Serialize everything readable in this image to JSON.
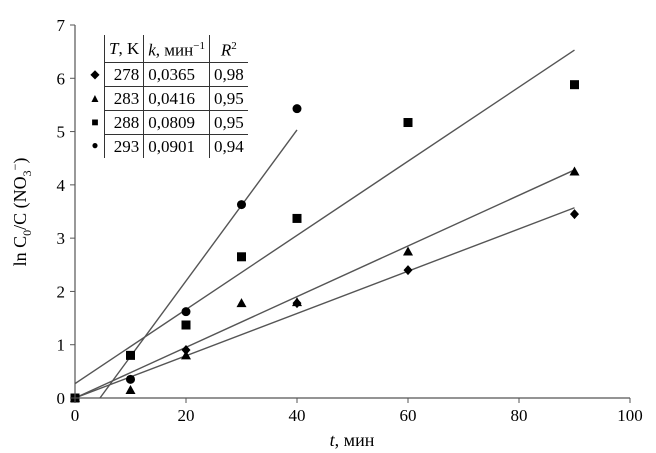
{
  "chart_data": {
    "type": "scatter",
    "xlabel": {
      "italic": "t",
      "rest": ", мин"
    },
    "ylabel": {
      "a": "ln C",
      "sub0": "0",
      "b": "/C (NO",
      "sub3": "3",
      "sup": "−",
      "c": ")"
    },
    "xlim": [
      0,
      100
    ],
    "ylim": [
      0,
      7
    ],
    "xticks": [
      "0",
      "20",
      "40",
      "60",
      "80",
      "100"
    ],
    "yticks": [
      "0",
      "1",
      "2",
      "3",
      "4",
      "5",
      "6",
      "7"
    ],
    "grid": false,
    "series": [
      {
        "name": "278",
        "marker": "diamond",
        "points": [
          [
            0,
            0
          ],
          [
            20,
            0.9
          ],
          [
            40,
            1.78
          ],
          [
            60,
            2.4
          ],
          [
            90,
            3.45
          ]
        ],
        "fit": [
          [
            0,
            0
          ],
          [
            90,
            3.57
          ]
        ]
      },
      {
        "name": "283",
        "marker": "triangle",
        "points": [
          [
            0,
            0
          ],
          [
            10,
            0.15
          ],
          [
            20,
            0.8
          ],
          [
            30,
            1.78
          ],
          [
            40,
            1.8
          ],
          [
            60,
            2.75
          ],
          [
            90,
            4.25
          ]
        ],
        "fit": [
          [
            0,
            0
          ],
          [
            90,
            4.28
          ]
        ]
      },
      {
        "name": "288",
        "marker": "square",
        "points": [
          [
            0,
            0
          ],
          [
            10,
            0.8
          ],
          [
            20,
            1.37
          ],
          [
            30,
            2.65
          ],
          [
            40,
            3.37
          ],
          [
            60,
            5.17
          ],
          [
            90,
            5.88
          ]
        ],
        "fit": [
          [
            0,
            0.27
          ],
          [
            90,
            6.53
          ]
        ]
      },
      {
        "name": "293",
        "marker": "circle",
        "points": [
          [
            0,
            0
          ],
          [
            10,
            0.35
          ],
          [
            20,
            1.62
          ],
          [
            30,
            3.63
          ],
          [
            40,
            5.43
          ]
        ],
        "fit": [
          [
            4.5,
            0
          ],
          [
            40,
            5.03
          ]
        ]
      }
    ],
    "table": {
      "headers": {
        "T": "T",
        "T_unit": ", K",
        "k": "k",
        "k_unit": ", мин",
        "k_sup": "−1",
        "R": "R",
        "R_sup": "2"
      },
      "rows": [
        {
          "T": "278",
          "k": "0,0365",
          "R2": "0,98"
        },
        {
          "T": "283",
          "k": "0,0416",
          "R2": "0,95"
        },
        {
          "T": "288",
          "k": "0,0809",
          "R2": "0,95"
        },
        {
          "T": "293",
          "k": "0,0901",
          "R2": "0,94"
        }
      ]
    }
  }
}
